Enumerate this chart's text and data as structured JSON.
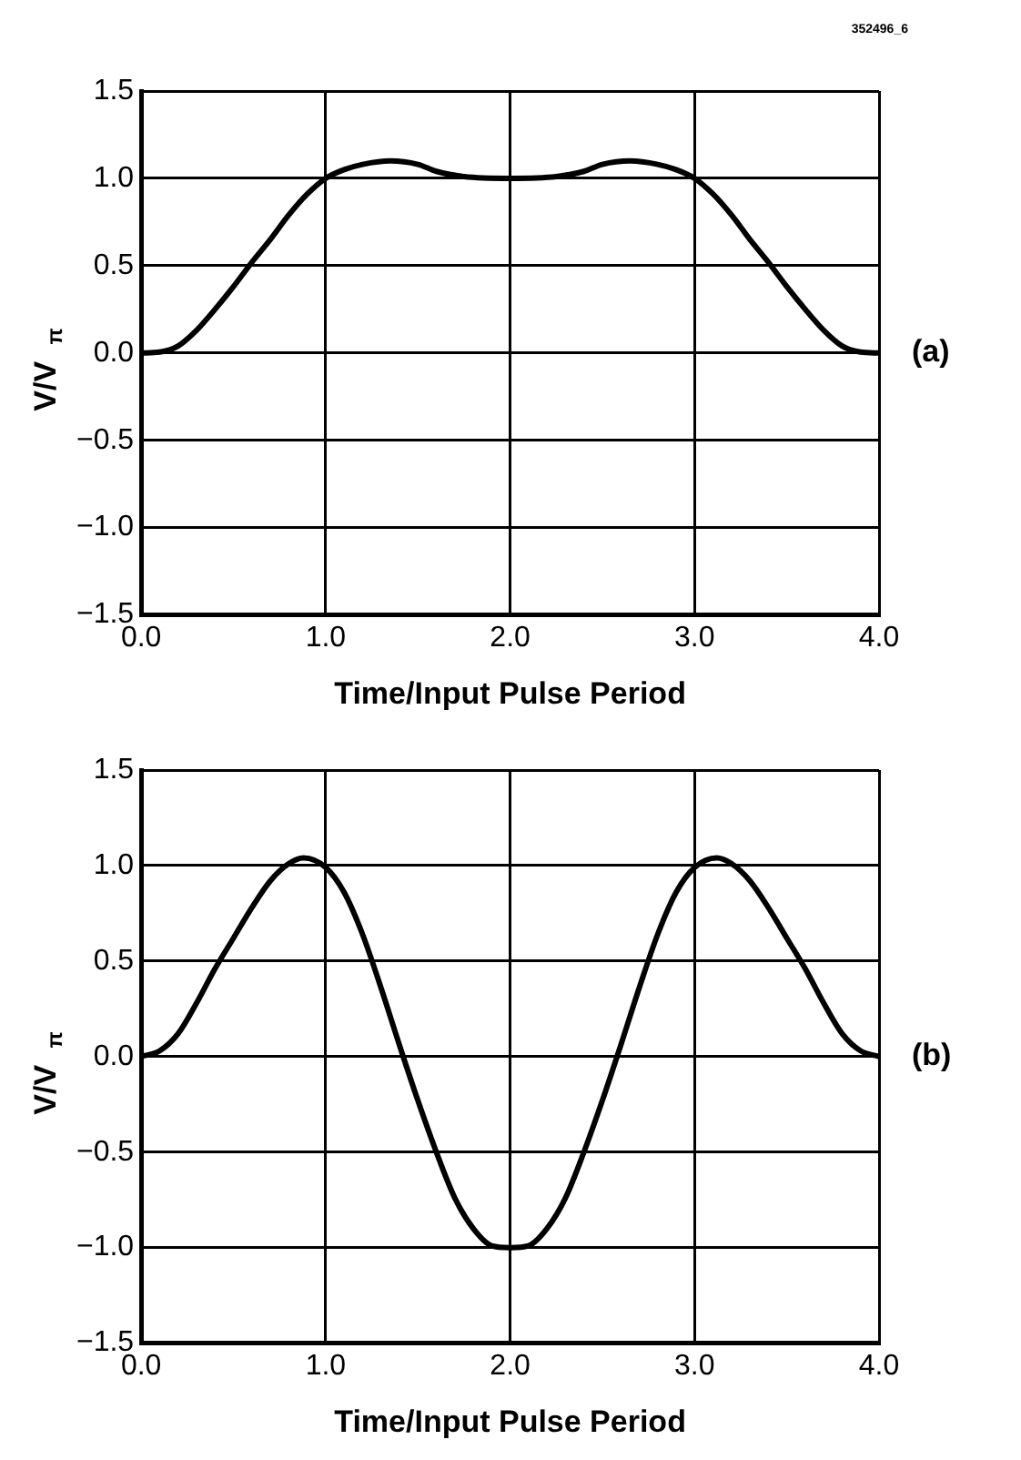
{
  "chart_data": [
    {
      "type": "line",
      "xlabel": "Time/Input Pulse Period",
      "ylabel": "V/V$_{π}$",
      "annotations": [
        "352496_6",
        "(a)"
      ],
      "xlim": [
        0,
        4
      ],
      "xticks": [
        {
          "value": 0,
          "label": "0.0"
        },
        {
          "value": 1,
          "label": "1.0"
        },
        {
          "value": 2,
          "label": "2.0"
        },
        {
          "value": 3,
          "label": "3.0"
        },
        {
          "value": 4,
          "label": "4.0"
        }
      ],
      "ylim": [
        -1.5,
        1.5
      ],
      "yticks": [
        {
          "value": -1.5,
          "label": "−1.5"
        },
        {
          "value": -1,
          "label": "−1.0"
        },
        {
          "value": -0.5,
          "label": "−0.5"
        },
        {
          "value": 0,
          "label": "0.0"
        },
        {
          "value": 0.5,
          "label": "0.5"
        },
        {
          "value": 1,
          "label": "1.0"
        },
        {
          "value": 1.5,
          "label": "1.5"
        }
      ],
      "grid": true,
      "marker": "none",
      "line_style": "solid",
      "series": [
        {
          "color": "#000000",
          "x": [
            0,
            0.1,
            0.2,
            0.3,
            0.4,
            0.5,
            0.6,
            0.7,
            0.8,
            0.9,
            1.0,
            1.1,
            1.2,
            1.35,
            1.5,
            1.6,
            1.75,
            2.0,
            2.25,
            2.4,
            2.5,
            2.65,
            2.8,
            2.9,
            3.0,
            3.1,
            3.2,
            3.3,
            3.4,
            3.5,
            3.6,
            3.7,
            3.8,
            3.9,
            4.0
          ],
          "values": [
            0,
            0.005,
            0.04,
            0.13,
            0.25,
            0.38,
            0.52,
            0.65,
            0.79,
            0.91,
            1.0,
            1.05,
            1.08,
            1.1,
            1.08,
            1.04,
            1.01,
            1.0,
            1.01,
            1.04,
            1.08,
            1.1,
            1.08,
            1.05,
            1.0,
            0.91,
            0.79,
            0.65,
            0.52,
            0.38,
            0.25,
            0.13,
            0.04,
            0.005,
            0
          ]
        }
      ]
    },
    {
      "type": "line",
      "xlabel": "Time/Input Pulse Period",
      "ylabel": "V/V$_{π}$",
      "annotations": [
        "(b)"
      ],
      "xlim": [
        0,
        4
      ],
      "xticks": [
        {
          "value": 0,
          "label": "0.0"
        },
        {
          "value": 1,
          "label": "1.0"
        },
        {
          "value": 2,
          "label": "2.0"
        },
        {
          "value": 3,
          "label": "3.0"
        },
        {
          "value": 4,
          "label": "4.0"
        }
      ],
      "ylim": [
        -1.5,
        1.5
      ],
      "yticks": [
        {
          "value": -1.5,
          "label": "−1.5"
        },
        {
          "value": -1,
          "label": "−1.0"
        },
        {
          "value": -0.5,
          "label": "−0.5"
        },
        {
          "value": 0,
          "label": "0.0"
        },
        {
          "value": 0.5,
          "label": "0.5"
        },
        {
          "value": 1,
          "label": "1.0"
        },
        {
          "value": 1.5,
          "label": "1.5"
        }
      ],
      "grid": true,
      "marker": "none",
      "line_style": "solid",
      "series": [
        {
          "color": "#000000",
          "x": [
            0,
            0.1,
            0.2,
            0.3,
            0.4,
            0.5,
            0.6,
            0.7,
            0.8,
            0.88,
            1.0,
            1.1,
            1.2,
            1.3,
            1.4,
            1.5,
            1.6,
            1.7,
            1.8,
            1.9,
            2.0,
            2.1,
            2.2,
            2.3,
            2.4,
            2.5,
            2.6,
            2.7,
            2.8,
            2.9,
            3.0,
            3.12,
            3.2,
            3.3,
            3.4,
            3.5,
            3.6,
            3.7,
            3.8,
            3.9,
            4.0
          ],
          "values": [
            0,
            0.03,
            0.12,
            0.28,
            0.46,
            0.62,
            0.78,
            0.92,
            1.01,
            1.04,
            0.99,
            0.86,
            0.64,
            0.36,
            0.06,
            -0.23,
            -0.5,
            -0.74,
            -0.9,
            -0.99,
            -1.0,
            -0.99,
            -0.9,
            -0.74,
            -0.5,
            -0.23,
            0.06,
            0.36,
            0.64,
            0.86,
            0.99,
            1.04,
            1.01,
            0.92,
            0.78,
            0.62,
            0.46,
            0.28,
            0.12,
            0.03,
            0
          ]
        }
      ]
    }
  ]
}
